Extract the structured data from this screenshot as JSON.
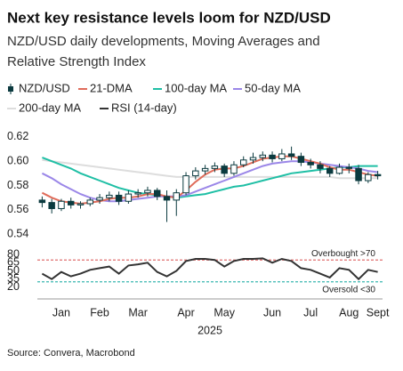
{
  "chart_data": [
    {
      "type": "candlestick",
      "title": "Next key resistance levels loom for NZD/USD",
      "subtitle": [
        "NZD/USD daily developments, Moving Averages and",
        "Relative Strength Index"
      ],
      "source": "Source: Convera, Macrobond",
      "ylim": [
        0.535,
        0.625
      ],
      "yticks": [
        0.54,
        0.56,
        0.58,
        {
          "value": 0.6,
          "label": "0.60"
        },
        0.62
      ],
      "grid": false,
      "series": [
        {
          "name": "NZD/USD",
          "color": "#0b3a3f",
          "open": [
            0.568,
            0.566,
            0.561,
            0.567,
            0.564,
            0.565,
            0.568,
            0.57,
            0.572,
            0.567,
            0.573,
            0.574,
            0.576,
            0.571,
            0.568,
            0.574,
            0.588,
            0.592,
            0.594,
            0.596,
            0.59,
            0.597,
            0.601,
            0.603,
            0.605,
            0.602,
            0.606,
            0.604,
            0.599,
            0.597,
            0.594,
            0.59,
            0.595,
            0.594,
            0.584,
            0.589
          ],
          "high": [
            0.571,
            0.569,
            0.569,
            0.57,
            0.567,
            0.57,
            0.573,
            0.575,
            0.575,
            0.576,
            0.577,
            0.579,
            0.578,
            0.576,
            0.577,
            0.591,
            0.595,
            0.597,
            0.599,
            0.598,
            0.6,
            0.604,
            0.607,
            0.608,
            0.608,
            0.61,
            0.612,
            0.607,
            0.602,
            0.6,
            0.596,
            0.598,
            0.598,
            0.597,
            0.591,
            0.592
          ],
          "low": [
            0.562,
            0.557,
            0.559,
            0.561,
            0.561,
            0.563,
            0.565,
            0.567,
            0.564,
            0.565,
            0.57,
            0.571,
            0.568,
            0.55,
            0.555,
            0.572,
            0.585,
            0.589,
            0.591,
            0.587,
            0.588,
            0.595,
            0.598,
            0.6,
            0.599,
            0.6,
            0.601,
            0.596,
            0.594,
            0.59,
            0.587,
            0.589,
            0.59,
            0.581,
            0.582,
            0.585
          ],
          "close": [
            0.566,
            0.561,
            0.567,
            0.564,
            0.565,
            0.568,
            0.57,
            0.572,
            0.567,
            0.573,
            0.574,
            0.576,
            0.571,
            0.568,
            0.574,
            0.588,
            0.592,
            0.594,
            0.596,
            0.59,
            0.597,
            0.601,
            0.603,
            0.605,
            0.602,
            0.606,
            0.604,
            0.599,
            0.597,
            0.594,
            0.59,
            0.595,
            0.594,
            0.584,
            0.589,
            0.588
          ]
        },
        {
          "name": "21-DMA",
          "color": "#e06c5a",
          "values": [
            0.574,
            0.57,
            0.567,
            0.566,
            0.565,
            0.566,
            0.567,
            0.569,
            0.57,
            0.57,
            0.571,
            0.573,
            0.573,
            0.571,
            0.57,
            0.576,
            0.583,
            0.589,
            0.593,
            0.594,
            0.594,
            0.596,
            0.599,
            0.602,
            0.603,
            0.604,
            0.604,
            0.602,
            0.6,
            0.598,
            0.595,
            0.593,
            0.593,
            0.591,
            0.589,
            0.588
          ]
        },
        {
          "name": "100-day MA",
          "color": "#1fbfa5",
          "values": [
            0.603,
            0.6,
            0.597,
            0.594,
            0.59,
            0.587,
            0.584,
            0.581,
            0.578,
            0.576,
            0.574,
            0.573,
            0.572,
            0.571,
            0.57,
            0.571,
            0.572,
            0.573,
            0.575,
            0.577,
            0.579,
            0.58,
            0.582,
            0.584,
            0.586,
            0.588,
            0.59,
            0.591,
            0.592,
            0.593,
            0.594,
            0.595,
            0.595,
            0.596,
            0.596,
            0.596
          ]
        },
        {
          "name": "50-day MA",
          "color": "#9b87e8",
          "values": [
            0.59,
            0.586,
            0.581,
            0.577,
            0.573,
            0.57,
            0.568,
            0.567,
            0.567,
            0.568,
            0.569,
            0.57,
            0.571,
            0.571,
            0.571,
            0.572,
            0.575,
            0.578,
            0.581,
            0.584,
            0.587,
            0.59,
            0.593,
            0.596,
            0.598,
            0.599,
            0.6,
            0.6,
            0.599,
            0.598,
            0.597,
            0.596,
            0.595,
            0.594,
            0.592,
            0.591
          ]
        },
        {
          "name": "200-day MA",
          "color": "#dddddd",
          "values": [
            0.601,
            0.6,
            0.599,
            0.598,
            0.597,
            0.596,
            0.595,
            0.594,
            0.593,
            0.592,
            0.591,
            0.59,
            0.589,
            0.588,
            0.587,
            0.587,
            0.587,
            0.587,
            0.587,
            0.587,
            0.587,
            0.587,
            0.587,
            0.587,
            0.587,
            0.587,
            0.587,
            0.587,
            0.587,
            0.587,
            0.587,
            0.586,
            0.586,
            0.586,
            0.586,
            0.586
          ]
        }
      ]
    },
    {
      "type": "line",
      "categories": [
        null,
        null,
        "Jan",
        null,
        null,
        null,
        "Feb",
        null,
        null,
        null,
        "Mar",
        null,
        null,
        null,
        null,
        "Apr",
        null,
        null,
        null,
        "May",
        null,
        null,
        null,
        null,
        "Jun",
        null,
        null,
        null,
        "Jul",
        null,
        null,
        null,
        "Aug",
        null,
        null,
        "Sept"
      ],
      "xlabel": "2025",
      "ylim": [
        15,
        85
      ],
      "yticks": [
        20,
        35,
        50,
        65,
        80
      ],
      "hlines": [
        {
          "label": "Overbought >70",
          "value": 70,
          "color": "#e07070"
        },
        {
          "label": "Oversold <30",
          "value": 30,
          "color": "#3bb8b0"
        }
      ],
      "series": [
        {
          "name": "RSI (14-day)",
          "color": "#333333",
          "values": [
            45,
            35,
            48,
            40,
            45,
            52,
            55,
            58,
            45,
            60,
            62,
            65,
            48,
            40,
            50,
            68,
            72,
            72,
            70,
            58,
            68,
            72,
            72,
            73,
            65,
            72,
            68,
            55,
            52,
            45,
            38,
            55,
            52,
            35,
            52,
            48
          ]
        }
      ]
    }
  ]
}
